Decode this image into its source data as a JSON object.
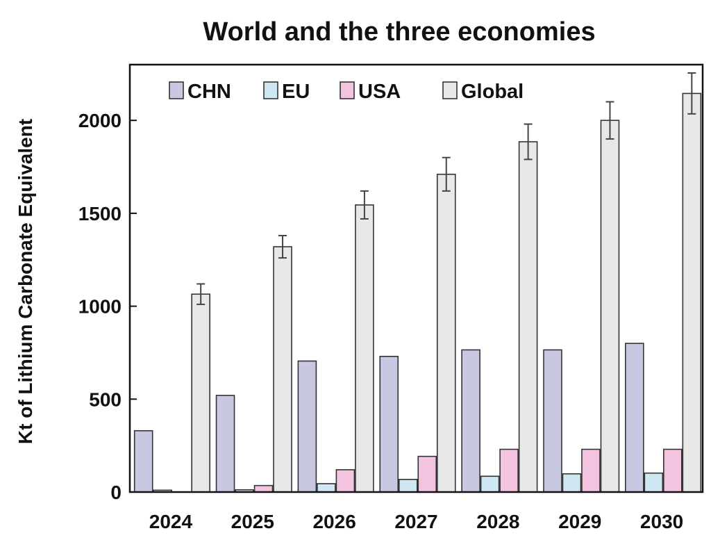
{
  "chart_data": {
    "type": "bar",
    "title": "World and the three economies",
    "ylabel": "Kt of Lithium Carbonate Equivalent",
    "xlabel": "",
    "categories": [
      "2024",
      "2025",
      "2026",
      "2027",
      "2028",
      "2029",
      "2030"
    ],
    "ylim": [
      0,
      2300
    ],
    "yticks": [
      0,
      500,
      1000,
      1500,
      2000
    ],
    "grid": false,
    "legend_position": "top-left",
    "series": [
      {
        "name": "CHN",
        "color": "#c9c8e3",
        "values": [
          330,
          520,
          705,
          730,
          765,
          765,
          800
        ]
      },
      {
        "name": "EU",
        "color": "#cfe6f3",
        "values": [
          10,
          12,
          45,
          68,
          85,
          98,
          102
        ]
      },
      {
        "name": "USA",
        "color": "#f3c3df",
        "values": [
          0,
          35,
          120,
          192,
          230,
          230,
          230
        ]
      },
      {
        "name": "Global",
        "color": "#e8e8e8",
        "values": [
          1065,
          1320,
          1545,
          1710,
          1885,
          2000,
          2145
        ],
        "error": [
          55,
          60,
          75,
          90,
          95,
          100,
          110
        ]
      }
    ]
  }
}
